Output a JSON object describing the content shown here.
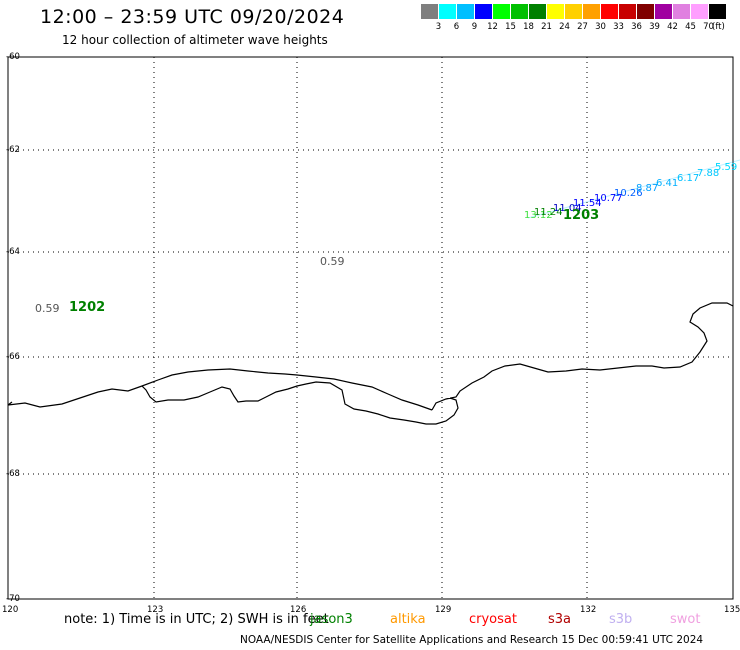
{
  "header": {
    "title": "12:00 – 23:59 UTC 09/20/2024",
    "subtitle": "12 hour collection of altimeter wave heights"
  },
  "legend": {
    "colors": [
      "#7f7f7f",
      "#00ffff",
      "#00bfff",
      "#0000ff",
      "#00ff00",
      "#00c000",
      "#008000",
      "#ffff00",
      "#ffd000",
      "#ffa000",
      "#ff0000",
      "#c80000",
      "#800000",
      "#a000a0",
      "#e080e0",
      "#ff9fff",
      "#000000"
    ],
    "labels": [
      "3",
      "6",
      "9",
      "12",
      "15",
      "18",
      "21",
      "24",
      "27",
      "30",
      "33",
      "36",
      "39",
      "42",
      "45",
      "70"
    ],
    "unit": "(ft)"
  },
  "axes": {
    "lat_ticks": [
      "-60",
      "-62",
      "-64",
      "-66",
      "-68",
      "-70"
    ],
    "lon_ticks": [
      "120",
      "123",
      "126",
      "129",
      "132",
      "135"
    ]
  },
  "annotations": {
    "val_a": "0.59",
    "val_b": "0.59",
    "time_a": "1202",
    "time_b": "1203"
  },
  "track_labels": [
    "13.12",
    "11.24",
    "11.04",
    "11.54",
    "10.77",
    "10.26",
    "8.87",
    "6.41",
    "6.17",
    "7.88",
    "5.59"
  ],
  "note": {
    "prefix": "note: 1) Time is in UTC; 2) SWH is in feet",
    "satellites": [
      "jason3",
      "altika",
      "cryosat",
      "s3a",
      "s3b",
      "swot"
    ]
  },
  "footer": "NOAA/NESDIS Center for Satellite Applications and Research   15 Dec 00:59:41 UTC 2024"
}
